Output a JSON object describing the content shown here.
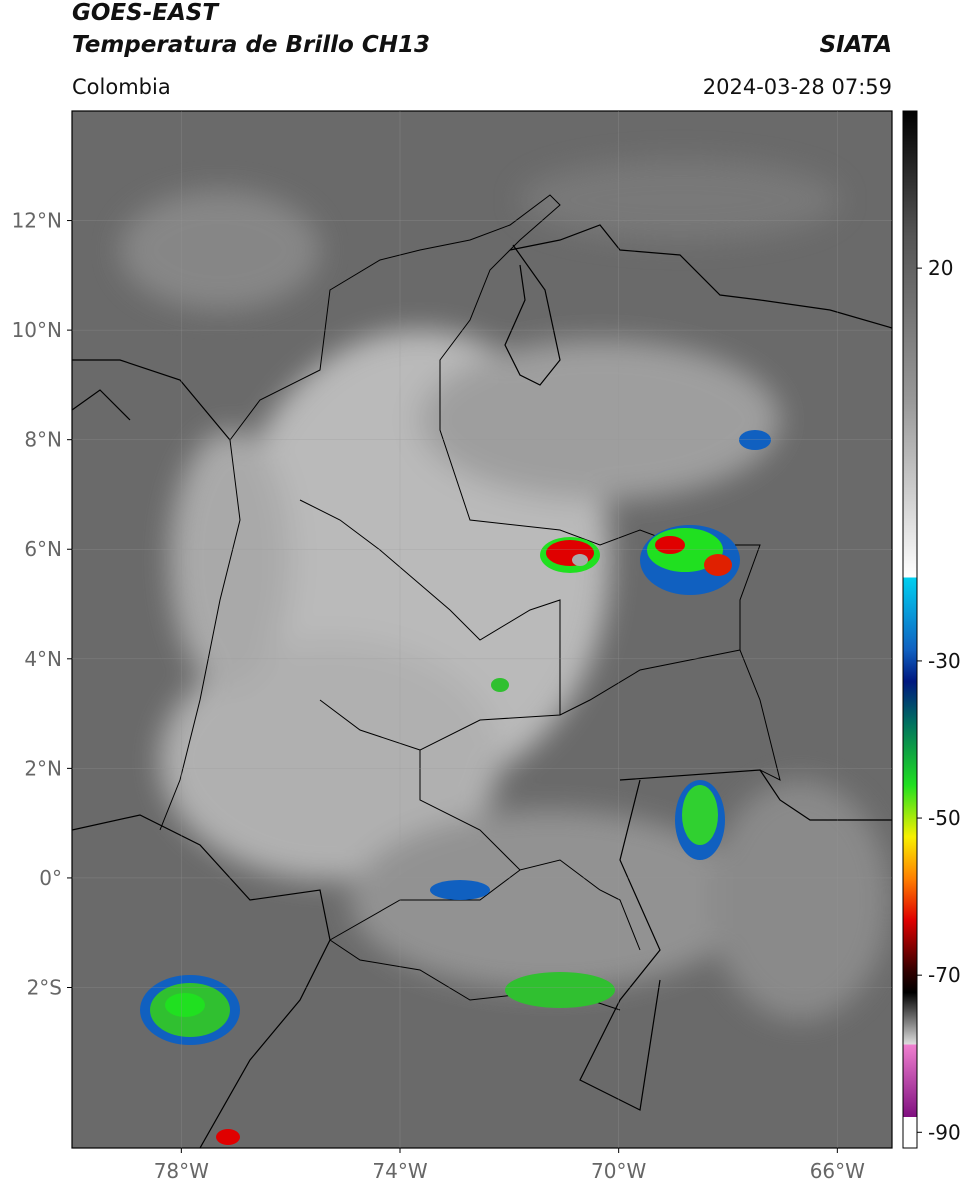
{
  "header": {
    "title": "GOES-EAST",
    "subtitle": "Temperatura de Brillo CH13",
    "region": "Colombia",
    "source": "SIATA",
    "datetime": "2024-03-28 07:59"
  },
  "map": {
    "xlim": [
      -80,
      -65
    ],
    "ylim": [
      -4.93,
      14
    ],
    "xticks": [
      {
        "value": -78,
        "label": "78°W"
      },
      {
        "value": -74,
        "label": "74°W"
      },
      {
        "value": -70,
        "label": "70°W"
      },
      {
        "value": -66,
        "label": "66°W"
      }
    ],
    "yticks": [
      {
        "value": 12,
        "label": "12°N"
      },
      {
        "value": 10,
        "label": "10°N"
      },
      {
        "value": 8,
        "label": "8°N"
      },
      {
        "value": 6,
        "label": "6°N"
      },
      {
        "value": 4,
        "label": "4°N"
      },
      {
        "value": 2,
        "label": "2°N"
      },
      {
        "value": 0,
        "label": "0°"
      },
      {
        "value": -2,
        "label": "2°S"
      }
    ]
  },
  "colorbar": {
    "lim": [
      -92,
      40
    ],
    "ticks": [
      20,
      -30,
      -50,
      -70,
      -90
    ]
  }
}
